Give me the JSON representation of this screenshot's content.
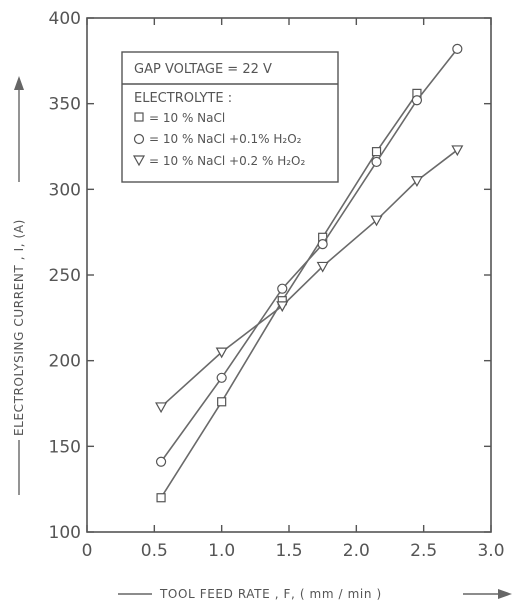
{
  "chart_data": {
    "type": "line",
    "xlabel": "TOOL FEED RATE , F, ( mm / min )",
    "ylabel": "ELECTROLYSING CURRENT , I, (A)",
    "xlim": [
      0,
      3.0
    ],
    "ylim": [
      100,
      400
    ],
    "x_ticks": [
      0,
      0.5,
      1.0,
      1.5,
      2.0,
      2.5,
      3.0
    ],
    "x_tick_labels": [
      "0",
      "0.5",
      "1.0",
      "1.5",
      "2.0",
      "2.5",
      "3.0"
    ],
    "y_ticks": [
      100,
      150,
      200,
      250,
      300,
      350,
      400
    ],
    "y_tick_labels": [
      "100",
      "150",
      "200",
      "250",
      "300",
      "350",
      "400"
    ],
    "grid": false,
    "legend": {
      "placement": "top-left",
      "header": "GAP VOLTAGE = 22 V",
      "title": "ELECTROLYTE :",
      "entries": [
        {
          "symbol": "square",
          "label": "= 10 % NaCl"
        },
        {
          "symbol": "circle",
          "label": "= 10 % NaCl +0.1% H₂O₂"
        },
        {
          "symbol": "triangle-down",
          "label": "= 10 % NaCl +0.2 % H₂O₂"
        }
      ]
    },
    "series": [
      {
        "marker": "square",
        "x": [
          0.55,
          1.0,
          1.45,
          1.75,
          2.15,
          2.45
        ],
        "y": [
          120,
          176,
          235,
          272,
          322,
          356
        ]
      },
      {
        "marker": "circle",
        "x": [
          0.55,
          1.0,
          1.45,
          1.75,
          2.15,
          2.45,
          2.75
        ],
        "y": [
          141,
          190,
          242,
          268,
          316,
          352,
          382
        ]
      },
      {
        "marker": "triangle-down",
        "x": [
          0.55,
          1.0,
          1.45,
          1.75,
          2.15,
          2.45,
          2.75
        ],
        "y": [
          173,
          205,
          232,
          255,
          282,
          305,
          323
        ]
      }
    ]
  }
}
